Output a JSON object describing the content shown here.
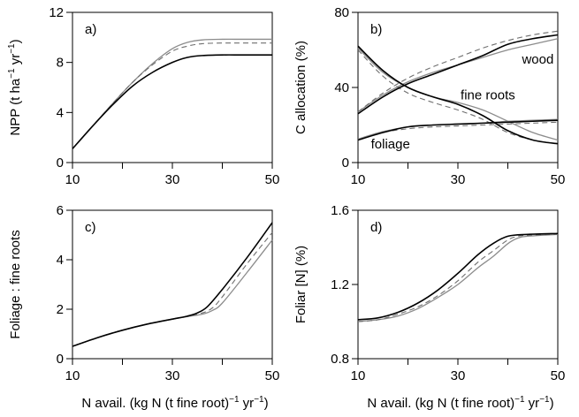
{
  "chart_data": [
    {
      "type": "line",
      "panel_label": "a)",
      "ylabel_main": "NPP (t ha",
      "ylabel_sup1": "−1",
      "ylabel_mid": " yr",
      "ylabel_sup2": "−1",
      "ylabel_end": ")",
      "xlabel_main": "",
      "xlim": [
        10,
        50
      ],
      "ylim": [
        0,
        12
      ],
      "xticks": [
        10,
        20,
        30,
        40,
        50
      ],
      "xtick_labels": [
        "10",
        "",
        "30",
        "",
        "50"
      ],
      "yticks": [
        0,
        4,
        8,
        12
      ],
      "ytick_labels": [
        "0",
        "4",
        "8",
        "12"
      ],
      "annotations": [],
      "series": [
        {
          "style": "black",
          "x": [
            10,
            14,
            18,
            22,
            26,
            30,
            33,
            36,
            40,
            44,
            50
          ],
          "y": [
            1.1,
            2.9,
            4.6,
            6.1,
            7.2,
            8.0,
            8.4,
            8.55,
            8.6,
            8.6,
            8.6
          ]
        },
        {
          "style": "gray",
          "x": [
            10,
            14,
            18,
            22,
            26,
            30,
            33,
            36,
            40,
            44,
            50
          ],
          "y": [
            1.1,
            2.9,
            4.7,
            6.4,
            7.9,
            9.1,
            9.6,
            9.8,
            9.85,
            9.85,
            9.85
          ]
        },
        {
          "style": "dashed",
          "x": [
            10,
            14,
            18,
            22,
            26,
            30,
            33,
            36,
            40,
            44,
            50
          ],
          "y": [
            1.1,
            2.9,
            4.7,
            6.4,
            7.8,
            8.9,
            9.3,
            9.5,
            9.55,
            9.55,
            9.55
          ]
        }
      ]
    },
    {
      "type": "line",
      "panel_label": "b)",
      "ylabel_main": "C allocation (%)",
      "xlabel_main": "",
      "xlim": [
        10,
        50
      ],
      "ylim": [
        0,
        80
      ],
      "xticks": [
        10,
        20,
        30,
        40,
        50
      ],
      "xtick_labels": [
        "10",
        "",
        "30",
        "",
        "50"
      ],
      "yticks": [
        0,
        40,
        80
      ],
      "ytick_labels": [
        "0",
        "40",
        "80"
      ],
      "annotations": [
        {
          "text": "wood",
          "x": 46,
          "y": 55
        },
        {
          "text": "fine roots",
          "x": 36,
          "y": 36
        },
        {
          "text": "foliage",
          "x": 16.5,
          "y": 10
        }
      ],
      "series": [
        {
          "group": "wood",
          "style": "black",
          "x": [
            10,
            15,
            20,
            25,
            30,
            35,
            40,
            45,
            50
          ],
          "y": [
            26,
            35,
            42,
            47,
            52,
            57,
            63,
            66,
            68
          ]
        },
        {
          "group": "wood",
          "style": "gray",
          "x": [
            10,
            15,
            20,
            25,
            30,
            35,
            40,
            45,
            50
          ],
          "y": [
            27,
            36,
            43,
            48,
            52,
            56,
            60,
            63,
            66
          ]
        },
        {
          "group": "wood",
          "style": "dashed",
          "x": [
            10,
            15,
            20,
            25,
            30,
            35,
            40,
            45,
            50
          ],
          "y": [
            27,
            37,
            45,
            51,
            56,
            61,
            65,
            68,
            70
          ]
        },
        {
          "group": "fine roots",
          "style": "black",
          "x": [
            10,
            15,
            20,
            25,
            30,
            35,
            40,
            45,
            50
          ],
          "y": [
            62,
            49,
            40,
            35,
            31,
            25,
            17,
            12,
            10
          ]
        },
        {
          "group": "fine roots",
          "style": "gray",
          "x": [
            10,
            15,
            20,
            25,
            30,
            35,
            40,
            45,
            50
          ],
          "y": [
            61,
            48,
            40,
            35,
            32,
            28,
            22,
            16,
            12
          ]
        },
        {
          "group": "fine roots",
          "style": "dashed",
          "x": [
            10,
            15,
            20,
            25,
            30,
            35,
            40,
            45,
            50
          ],
          "y": [
            60,
            46,
            37,
            32,
            28,
            23,
            16,
            12,
            10
          ]
        },
        {
          "group": "foliage",
          "style": "black",
          "x": [
            10,
            15,
            20,
            25,
            30,
            35,
            40,
            45,
            50
          ],
          "y": [
            12,
            16,
            19,
            20,
            20.5,
            21,
            21.5,
            22,
            22.5
          ]
        },
        {
          "group": "foliage",
          "style": "gray",
          "x": [
            10,
            15,
            20,
            25,
            30,
            35,
            40,
            45,
            50
          ],
          "y": [
            12.5,
            16.5,
            19,
            20,
            20.5,
            21,
            22,
            22.5,
            23
          ]
        },
        {
          "group": "foliage",
          "style": "dashed",
          "x": [
            10,
            15,
            20,
            25,
            30,
            35,
            40,
            45,
            50
          ],
          "y": [
            12,
            16,
            18,
            19,
            19.5,
            20,
            20.5,
            21,
            21.5
          ]
        }
      ]
    },
    {
      "type": "line",
      "panel_label": "c)",
      "ylabel_main": "Foliage : fine roots",
      "xlabel_main": "N avail. (kg N (t fine root)",
      "xlabel_sup1": "−1",
      "xlabel_mid": " yr",
      "xlabel_sup2": "−1",
      "xlabel_end": ")",
      "xlim": [
        10,
        50
      ],
      "ylim": [
        0,
        6
      ],
      "xticks": [
        10,
        20,
        30,
        40,
        50
      ],
      "xtick_labels": [
        "10",
        "",
        "30",
        "",
        "50"
      ],
      "yticks": [
        0,
        2,
        4,
        6
      ],
      "ytick_labels": [
        "0",
        "2",
        "4",
        "6"
      ],
      "annotations": [],
      "series": [
        {
          "style": "black",
          "x": [
            10,
            15,
            20,
            25,
            30,
            33,
            35,
            37,
            40,
            45,
            50
          ],
          "y": [
            0.5,
            0.85,
            1.15,
            1.4,
            1.6,
            1.72,
            1.85,
            2.1,
            2.8,
            4.1,
            5.5
          ]
        },
        {
          "style": "gray",
          "x": [
            10,
            15,
            20,
            25,
            30,
            33,
            36,
            38,
            40,
            45,
            50
          ],
          "y": [
            0.5,
            0.85,
            1.15,
            1.4,
            1.6,
            1.7,
            1.8,
            1.95,
            2.25,
            3.5,
            4.8
          ]
        },
        {
          "style": "dashed",
          "x": [
            10,
            15,
            20,
            25,
            30,
            33,
            36,
            38,
            40,
            45,
            50
          ],
          "y": [
            0.5,
            0.85,
            1.15,
            1.4,
            1.6,
            1.72,
            1.85,
            2.05,
            2.5,
            3.85,
            5.1
          ]
        }
      ]
    },
    {
      "type": "line",
      "panel_label": "d)",
      "ylabel_main": "Foliar [N] (%)",
      "xlabel_main": "N avail. (kg N (t fine root)",
      "xlabel_sup1": "−1",
      "xlabel_mid": " yr",
      "xlabel_sup2": "−1",
      "xlabel_end": ")",
      "xlim": [
        10,
        50
      ],
      "ylim": [
        0.8,
        1.6
      ],
      "xticks": [
        10,
        20,
        30,
        40,
        50
      ],
      "xtick_labels": [
        "10",
        "",
        "30",
        "",
        "50"
      ],
      "yticks": [
        0.8,
        1.2,
        1.6
      ],
      "ytick_labels": [
        "0.8",
        "1.2",
        "1.6"
      ],
      "annotations": [],
      "series": [
        {
          "style": "black",
          "x": [
            10,
            14,
            18,
            22,
            26,
            30,
            34,
            37,
            40,
            44,
            50
          ],
          "y": [
            1.01,
            1.02,
            1.05,
            1.1,
            1.17,
            1.26,
            1.36,
            1.42,
            1.46,
            1.47,
            1.475
          ]
        },
        {
          "style": "gray",
          "x": [
            10,
            14,
            18,
            22,
            26,
            30,
            34,
            37,
            40,
            42,
            44,
            50
          ],
          "y": [
            1.0,
            1.01,
            1.03,
            1.07,
            1.13,
            1.2,
            1.29,
            1.35,
            1.42,
            1.45,
            1.46,
            1.47
          ]
        },
        {
          "style": "dashed",
          "x": [
            10,
            14,
            18,
            22,
            26,
            30,
            34,
            37,
            40,
            42,
            44,
            50
          ],
          "y": [
            1.0,
            1.01,
            1.04,
            1.08,
            1.14,
            1.22,
            1.32,
            1.38,
            1.44,
            1.46,
            1.465,
            1.47
          ]
        }
      ]
    }
  ]
}
